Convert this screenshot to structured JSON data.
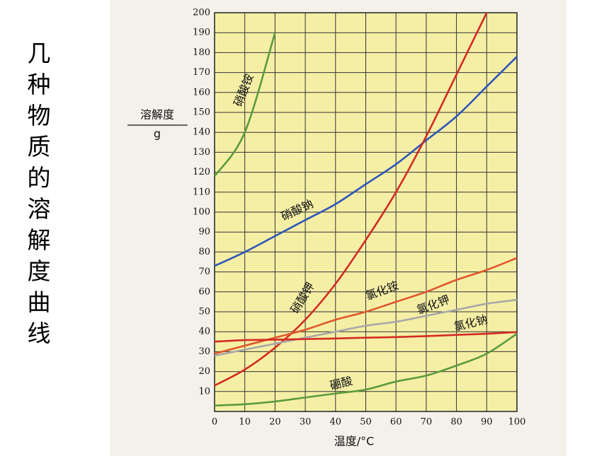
{
  "chart_data": {
    "type": "line",
    "title": "几种物质的溶解度曲线",
    "y_label": "溶解度",
    "y_unit": "g",
    "x_label": "温度/°C",
    "x": [
      0,
      10,
      20,
      30,
      40,
      50,
      60,
      70,
      80,
      90,
      100
    ],
    "xlim": [
      0,
      100
    ],
    "xticks": [
      0,
      10,
      20,
      30,
      40,
      50,
      60,
      70,
      80,
      90,
      100
    ],
    "ylim": [
      0,
      200
    ],
    "yticks": [
      10,
      20,
      30,
      40,
      50,
      60,
      70,
      80,
      90,
      100,
      110,
      120,
      130,
      140,
      150,
      160,
      170,
      180,
      190,
      200
    ],
    "grid": true,
    "series": [
      {
        "name": "硝酸铵",
        "color": "#5c9a3c",
        "values": [
          118,
          140,
          190,
          null,
          null,
          null,
          null,
          null,
          null,
          null,
          null
        ]
      },
      {
        "name": "硝酸钠",
        "color": "#2f56b8",
        "values": [
          73,
          80,
          88,
          96,
          104,
          114,
          124,
          136,
          148,
          163,
          178
        ]
      },
      {
        "name": "硝酸钾",
        "color": "#d42a24",
        "values": [
          13,
          21,
          32,
          46,
          64,
          86,
          110,
          138,
          169,
          200,
          null
        ]
      },
      {
        "name": "氯化铵",
        "color": "#e0562a",
        "values": [
          29,
          33,
          37,
          41,
          46,
          50,
          55,
          60,
          66,
          71,
          77
        ]
      },
      {
        "name": "氯化钾",
        "color": "#a8a8a8",
        "values": [
          28,
          31,
          34,
          37,
          40,
          43,
          45,
          48,
          51,
          54,
          56
        ]
      },
      {
        "name": "氯化钠",
        "color": "#d42a24",
        "values": [
          35,
          35.8,
          36,
          36.3,
          36.6,
          37,
          37.3,
          37.8,
          38.4,
          39,
          39.8
        ]
      },
      {
        "name": "硼酸",
        "color": "#5c9a3c",
        "values": [
          3,
          3.6,
          5,
          7,
          9,
          11,
          15,
          18,
          23,
          29,
          39
        ]
      }
    ]
  }
}
